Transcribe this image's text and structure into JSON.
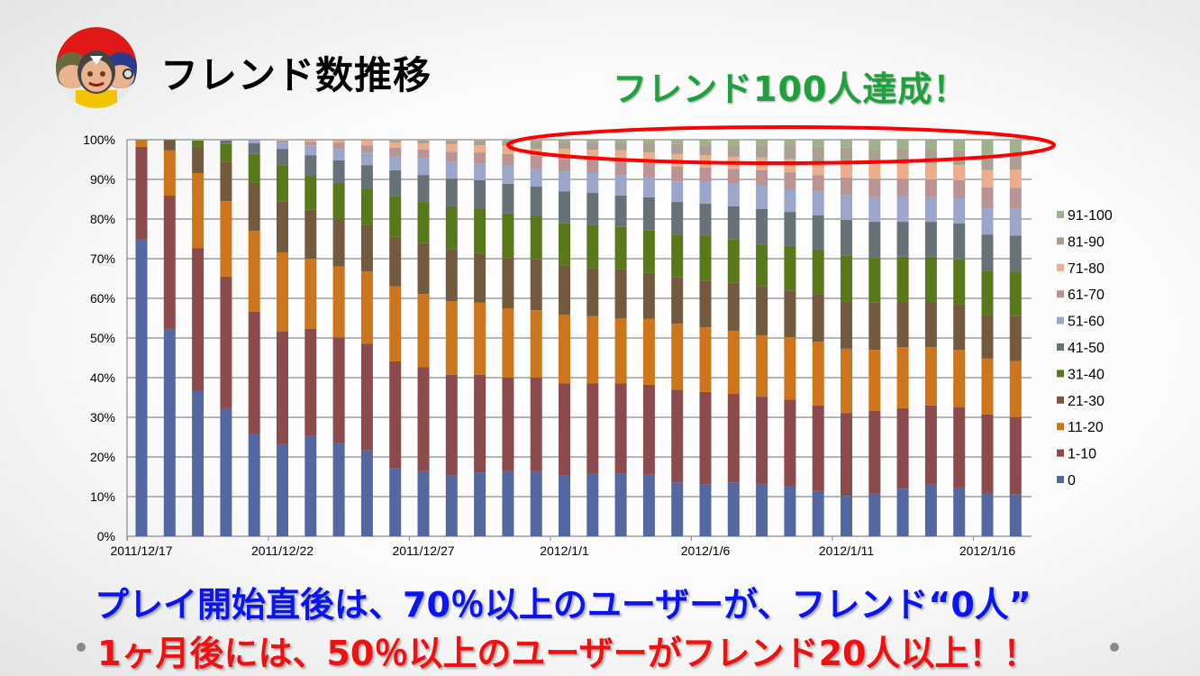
{
  "slide": {
    "title": "フレンド数推移",
    "headline": "フレンド100人達成！",
    "message_line1": "プレイ開始直後は、70％以上のユーザーが、フレンド“0人”",
    "message_line2": "1ヶ月後には、50％以上のユーザーがフレンド20人以上！！",
    "logo_icon": "game-characters-logo",
    "headline_color": "#1ea03c",
    "line1_color": "#0a14f0",
    "line2_color": "#f01010",
    "highlight_ellipse_color": "#ff0000"
  },
  "chart_data": {
    "type": "bar",
    "stacked": "percent",
    "grid": true,
    "legend_position": "right",
    "ylim": [
      0,
      100
    ],
    "y_ticks": [
      "0%",
      "10%",
      "20%",
      "30%",
      "40%",
      "50%",
      "60%",
      "70%",
      "80%",
      "90%",
      "100%"
    ],
    "x_tick_labels": [
      "2011/12/17",
      "2011/12/22",
      "2011/12/27",
      "2012/1/1",
      "2012/1/6",
      "2012/1/11",
      "2012/1/16"
    ],
    "categories": [
      "2011/12/17",
      "2011/12/18",
      "2011/12/19",
      "2011/12/20",
      "2011/12/21",
      "2011/12/22",
      "2011/12/23",
      "2011/12/24",
      "2011/12/25",
      "2011/12/26",
      "2011/12/27",
      "2011/12/28",
      "2011/12/29",
      "2011/12/30",
      "2011/12/31",
      "2012/1/1",
      "2012/1/2",
      "2012/1/3",
      "2012/1/4",
      "2012/1/5",
      "2012/1/6",
      "2012/1/7",
      "2012/1/8",
      "2012/1/9",
      "2012/1/10",
      "2012/1/11",
      "2012/1/12",
      "2012/1/13",
      "2012/1/14",
      "2012/1/15",
      "2012/1/16",
      "2012/1/17"
    ],
    "series": [
      {
        "name": "0",
        "color": "#5567a0",
        "values": [
          74.8,
          52.3,
          36.7,
          32.3,
          25.8,
          23.2,
          25.3,
          23.5,
          21.8,
          17.1,
          16.4,
          15.3,
          16.1,
          16.4,
          16.4,
          15.3,
          15.7,
          15.9,
          15.5,
          13.6,
          13.0,
          13.6,
          13.2,
          12.6,
          11.4,
          10.2,
          10.9,
          12.0,
          13.2,
          12.3,
          10.7,
          10.5
        ]
      },
      {
        "name": "1-10",
        "color": "#8b4a4b",
        "values": [
          23.4,
          33.6,
          36.0,
          33.2,
          30.8,
          28.4,
          27.0,
          26.7,
          26.8,
          27.0,
          26.3,
          25.4,
          24.6,
          23.6,
          23.6,
          23.3,
          22.9,
          22.7,
          22.7,
          23.4,
          23.4,
          22.3,
          22.0,
          21.9,
          21.6,
          20.9,
          20.7,
          20.3,
          19.8,
          20.2,
          20.0,
          19.5
        ]
      },
      {
        "name": "11-20",
        "color": "#cc751c",
        "values": [
          1.8,
          11.4,
          18.9,
          19.0,
          20.4,
          20.0,
          17.7,
          17.8,
          18.2,
          18.9,
          18.4,
          18.6,
          18.2,
          17.5,
          17.0,
          17.3,
          16.9,
          16.4,
          16.6,
          16.6,
          16.3,
          15.9,
          15.5,
          15.7,
          16.1,
          16.2,
          15.4,
          15.4,
          14.7,
          14.5,
          14.1,
          14.1
        ]
      },
      {
        "name": "21-30",
        "color": "#735a3e",
        "values": [
          0,
          2.5,
          6.6,
          10.0,
          12.1,
          12.9,
          12.3,
          12.0,
          11.8,
          12.5,
          12.8,
          13.0,
          12.5,
          12.7,
          12.8,
          12.3,
          12.2,
          12.3,
          11.6,
          11.7,
          11.8,
          12.1,
          12.3,
          11.8,
          12.0,
          11.8,
          11.9,
          11.4,
          11.4,
          11.5,
          10.9,
          11.4
        ]
      },
      {
        "name": "31-40",
        "color": "#58781b",
        "values": [
          0,
          0.2,
          1.6,
          4.4,
          7.3,
          9.0,
          8.6,
          9.1,
          9.1,
          10.2,
          10.4,
          10.9,
          11.1,
          11.2,
          11.0,
          10.7,
          10.9,
          10.7,
          10.8,
          10.8,
          11.2,
          10.9,
          10.6,
          11.2,
          11.2,
          11.6,
          11.3,
          11.4,
          11.4,
          11.3,
          11.3,
          11.1
        ]
      },
      {
        "name": "41-50",
        "color": "#677276",
        "values": [
          0,
          0,
          0,
          0.9,
          2.7,
          4.2,
          5.2,
          5.7,
          5.9,
          6.6,
          6.8,
          7.0,
          7.3,
          7.5,
          7.4,
          8.1,
          8.0,
          7.9,
          8.3,
          8.2,
          8.2,
          8.4,
          8.9,
          8.6,
          8.6,
          9.1,
          9.1,
          8.8,
          8.8,
          9.1,
          9.1,
          9.1
        ]
      },
      {
        "name": "51-60",
        "color": "#9ba6ca",
        "values": [
          0,
          0,
          0.2,
          0,
          0.7,
          1.6,
          2.5,
          2.9,
          3.2,
          3.6,
          4.2,
          4.3,
          4.1,
          4.6,
          4.5,
          5.0,
          5.0,
          5.2,
          5.0,
          5.2,
          5.4,
          5.7,
          5.9,
          5.7,
          6.1,
          6.3,
          6.2,
          6.4,
          6.2,
          6.3,
          6.6,
          6.8
        ]
      },
      {
        "name": "61-70",
        "color": "#ba9494",
        "values": [
          0,
          0,
          0,
          0.2,
          0.2,
          0.5,
          0.9,
          1.6,
          1.8,
          2.1,
          2.2,
          2.5,
          2.9,
          2.9,
          3.2,
          3.2,
          3.2,
          3.4,
          3.6,
          3.7,
          3.7,
          3.8,
          3.9,
          4.3,
          4.1,
          4.4,
          4.7,
          4.5,
          4.5,
          4.6,
          5.3,
          5.2
        ]
      },
      {
        "name": "71-80",
        "color": "#edac8a",
        "values": [
          0,
          0,
          0,
          0,
          0,
          0.2,
          0.3,
          0.5,
          1.2,
          1.3,
          1.6,
          1.9,
          1.8,
          2.0,
          1.8,
          2.5,
          2.7,
          2.8,
          2.7,
          3.2,
          3.1,
          3.0,
          3.2,
          3.3,
          3.4,
          3.8,
          3.9,
          3.7,
          3.9,
          3.8,
          4.3,
          4.6
        ]
      },
      {
        "name": "81-90",
        "color": "#ab9e92",
        "values": [
          0,
          0,
          0,
          0,
          0,
          0,
          0.2,
          0.2,
          0.1,
          0.5,
          0.7,
          0.9,
          1.2,
          1.2,
          1.5,
          1.6,
          1.8,
          1.8,
          2.3,
          2.5,
          2.5,
          2.9,
          2.9,
          3.3,
          3.7,
          3.7,
          3.6,
          3.6,
          3.6,
          3.7,
          3.9,
          3.9
        ]
      },
      {
        "name": "91-100",
        "color": "#9db289",
        "values": [
          0,
          0,
          0,
          0,
          0,
          0,
          0,
          0,
          0.1,
          0.2,
          0.2,
          0.2,
          0.2,
          0.4,
          0.8,
          0.7,
          0.7,
          0.9,
          0.9,
          1.1,
          1.4,
          1.4,
          1.6,
          1.6,
          1.8,
          2.0,
          2.3,
          2.5,
          2.5,
          2.7,
          3.8,
          3.6
        ]
      }
    ]
  }
}
